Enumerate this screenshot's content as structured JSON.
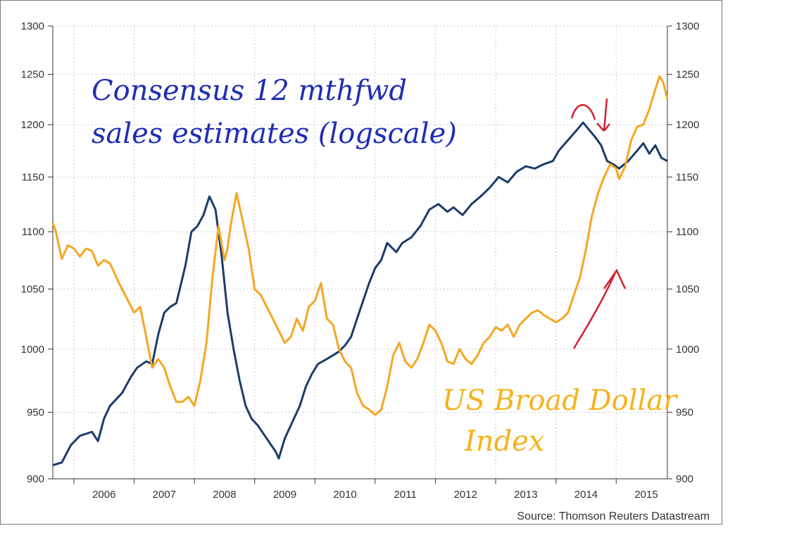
{
  "chart_data": {
    "type": "line",
    "x_axis": {
      "tick_labels": [
        "2006",
        "2007",
        "2008",
        "2009",
        "2010",
        "2011",
        "2012",
        "2013",
        "2014",
        "2015"
      ],
      "range": [
        2005.65,
        2015.85
      ]
    },
    "y_axis_left": {
      "ticks": [
        900,
        950,
        1000,
        1050,
        1100,
        1150,
        1200,
        1250,
        1300
      ],
      "range": [
        900,
        1300
      ],
      "scale": "log"
    },
    "y_axis_right": {
      "ticks": [
        900,
        950,
        1000,
        1050,
        1100,
        1150,
        1200,
        1250,
        1300
      ],
      "range": [
        900,
        1300
      ],
      "scale": "log"
    },
    "grid": true,
    "source": "Source: Thomson Reuters Datastream",
    "annotations": [
      {
        "text": "Consensus 12 mthfwd",
        "color": "#1f2db3"
      },
      {
        "text": "sales estimates (logscale)",
        "color": "#1f2db3"
      },
      {
        "text": "US Broad Dollar",
        "color": "#f6b21a"
      },
      {
        "text": "Index",
        "color": "#f6b21a"
      }
    ],
    "series": [
      {
        "color": "#1b3c6b",
        "points": [
          [
            2005.65,
            910
          ],
          [
            2005.8,
            912
          ],
          [
            2005.95,
            925
          ],
          [
            2006.1,
            932
          ],
          [
            2006.3,
            935
          ],
          [
            2006.4,
            928
          ],
          [
            2006.5,
            945
          ],
          [
            2006.6,
            955
          ],
          [
            2006.8,
            965
          ],
          [
            2006.95,
            978
          ],
          [
            2007.05,
            985
          ],
          [
            2007.2,
            990
          ],
          [
            2007.3,
            988
          ],
          [
            2007.4,
            1012
          ],
          [
            2007.5,
            1030
          ],
          [
            2007.6,
            1035
          ],
          [
            2007.7,
            1038
          ],
          [
            2007.85,
            1070
          ],
          [
            2007.95,
            1100
          ],
          [
            2008.05,
            1105
          ],
          [
            2008.15,
            1115
          ],
          [
            2008.25,
            1132
          ],
          [
            2008.35,
            1120
          ],
          [
            2008.45,
            1080
          ],
          [
            2008.55,
            1030
          ],
          [
            2008.65,
            1000
          ],
          [
            2008.75,
            975
          ],
          [
            2008.85,
            955
          ],
          [
            2008.95,
            945
          ],
          [
            2009.05,
            940
          ],
          [
            2009.2,
            930
          ],
          [
            2009.35,
            920
          ],
          [
            2009.4,
            915
          ],
          [
            2009.5,
            930
          ],
          [
            2009.6,
            940
          ],
          [
            2009.75,
            955
          ],
          [
            2009.85,
            970
          ],
          [
            2009.95,
            980
          ],
          [
            2010.05,
            988
          ],
          [
            2010.2,
            992
          ],
          [
            2010.4,
            998
          ],
          [
            2010.5,
            1003
          ],
          [
            2010.6,
            1010
          ],
          [
            2010.7,
            1025
          ],
          [
            2010.8,
            1040
          ],
          [
            2010.9,
            1055
          ],
          [
            2011.0,
            1068
          ],
          [
            2011.1,
            1075
          ],
          [
            2011.2,
            1090
          ],
          [
            2011.35,
            1082
          ],
          [
            2011.45,
            1090
          ],
          [
            2011.6,
            1095
          ],
          [
            2011.75,
            1105
          ],
          [
            2011.9,
            1120
          ],
          [
            2012.05,
            1125
          ],
          [
            2012.2,
            1118
          ],
          [
            2012.3,
            1122
          ],
          [
            2012.45,
            1115
          ],
          [
            2012.6,
            1125
          ],
          [
            2012.75,
            1132
          ],
          [
            2012.9,
            1140
          ],
          [
            2013.05,
            1150
          ],
          [
            2013.2,
            1145
          ],
          [
            2013.35,
            1155
          ],
          [
            2013.5,
            1160
          ],
          [
            2013.65,
            1158
          ],
          [
            2013.8,
            1162
          ],
          [
            2013.95,
            1165
          ],
          [
            2014.05,
            1175
          ],
          [
            2014.2,
            1185
          ],
          [
            2014.35,
            1195
          ],
          [
            2014.45,
            1202
          ],
          [
            2014.55,
            1195
          ],
          [
            2014.65,
            1188
          ],
          [
            2014.75,
            1180
          ],
          [
            2014.85,
            1165
          ],
          [
            2014.95,
            1162
          ],
          [
            2015.05,
            1158
          ],
          [
            2015.2,
            1165
          ],
          [
            2015.35,
            1175
          ],
          [
            2015.45,
            1182
          ],
          [
            2015.55,
            1172
          ],
          [
            2015.65,
            1180
          ],
          [
            2015.75,
            1168
          ],
          [
            2015.85,
            1165
          ]
        ]
      },
      {
        "color": "#f5a623",
        "points": [
          [
            2005.65,
            1108
          ],
          [
            2005.7,
            1100
          ],
          [
            2005.8,
            1076
          ],
          [
            2005.9,
            1088
          ],
          [
            2006.0,
            1085
          ],
          [
            2006.1,
            1078
          ],
          [
            2006.2,
            1085
          ],
          [
            2006.3,
            1083
          ],
          [
            2006.4,
            1070
          ],
          [
            2006.5,
            1075
          ],
          [
            2006.6,
            1072
          ],
          [
            2006.75,
            1055
          ],
          [
            2006.9,
            1040
          ],
          [
            2007.0,
            1030
          ],
          [
            2007.1,
            1035
          ],
          [
            2007.2,
            1010
          ],
          [
            2007.3,
            985
          ],
          [
            2007.4,
            992
          ],
          [
            2007.5,
            985
          ],
          [
            2007.6,
            970
          ],
          [
            2007.7,
            958
          ],
          [
            2007.8,
            958
          ],
          [
            2007.9,
            962
          ],
          [
            2008.0,
            955
          ],
          [
            2008.1,
            975
          ],
          [
            2008.2,
            1005
          ],
          [
            2008.3,
            1060
          ],
          [
            2008.4,
            1105
          ],
          [
            2008.5,
            1075
          ],
          [
            2008.55,
            1085
          ],
          [
            2008.6,
            1105
          ],
          [
            2008.7,
            1135
          ],
          [
            2008.8,
            1110
          ],
          [
            2008.9,
            1085
          ],
          [
            2009.0,
            1050
          ],
          [
            2009.1,
            1045
          ],
          [
            2009.2,
            1035
          ],
          [
            2009.3,
            1025
          ],
          [
            2009.4,
            1015
          ],
          [
            2009.5,
            1005
          ],
          [
            2009.6,
            1010
          ],
          [
            2009.7,
            1025
          ],
          [
            2009.8,
            1015
          ],
          [
            2009.9,
            1035
          ],
          [
            2010.0,
            1040
          ],
          [
            2010.1,
            1055
          ],
          [
            2010.2,
            1025
          ],
          [
            2010.3,
            1020
          ],
          [
            2010.4,
            1000
          ],
          [
            2010.5,
            990
          ],
          [
            2010.6,
            985
          ],
          [
            2010.7,
            965
          ],
          [
            2010.8,
            955
          ],
          [
            2010.9,
            952
          ],
          [
            2011.0,
            948
          ],
          [
            2011.1,
            952
          ],
          [
            2011.2,
            970
          ],
          [
            2011.3,
            995
          ],
          [
            2011.4,
            1005
          ],
          [
            2011.5,
            990
          ],
          [
            2011.6,
            985
          ],
          [
            2011.7,
            992
          ],
          [
            2011.8,
            1005
          ],
          [
            2011.9,
            1020
          ],
          [
            2012.0,
            1015
          ],
          [
            2012.1,
            1005
          ],
          [
            2012.2,
            990
          ],
          [
            2012.3,
            988
          ],
          [
            2012.4,
            1000
          ],
          [
            2012.5,
            992
          ],
          [
            2012.6,
            988
          ],
          [
            2012.7,
            995
          ],
          [
            2012.8,
            1005
          ],
          [
            2012.9,
            1010
          ],
          [
            2013.0,
            1018
          ],
          [
            2013.1,
            1015
          ],
          [
            2013.2,
            1020
          ],
          [
            2013.3,
            1010
          ],
          [
            2013.4,
            1020
          ],
          [
            2013.5,
            1025
          ],
          [
            2013.6,
            1030
          ],
          [
            2013.7,
            1032
          ],
          [
            2013.8,
            1028
          ],
          [
            2013.9,
            1025
          ],
          [
            2014.0,
            1022
          ],
          [
            2014.1,
            1025
          ],
          [
            2014.2,
            1030
          ],
          [
            2014.3,
            1045
          ],
          [
            2014.4,
            1060
          ],
          [
            2014.5,
            1085
          ],
          [
            2014.6,
            1115
          ],
          [
            2014.7,
            1135
          ],
          [
            2014.8,
            1150
          ],
          [
            2014.9,
            1162
          ],
          [
            2015.0,
            1158
          ],
          [
            2015.05,
            1148
          ],
          [
            2015.15,
            1160
          ],
          [
            2015.25,
            1185
          ],
          [
            2015.35,
            1198
          ],
          [
            2015.45,
            1200
          ],
          [
            2015.55,
            1215
          ],
          [
            2015.65,
            1235
          ],
          [
            2015.72,
            1248
          ],
          [
            2015.78,
            1242
          ],
          [
            2015.85,
            1225
          ]
        ]
      }
    ]
  }
}
